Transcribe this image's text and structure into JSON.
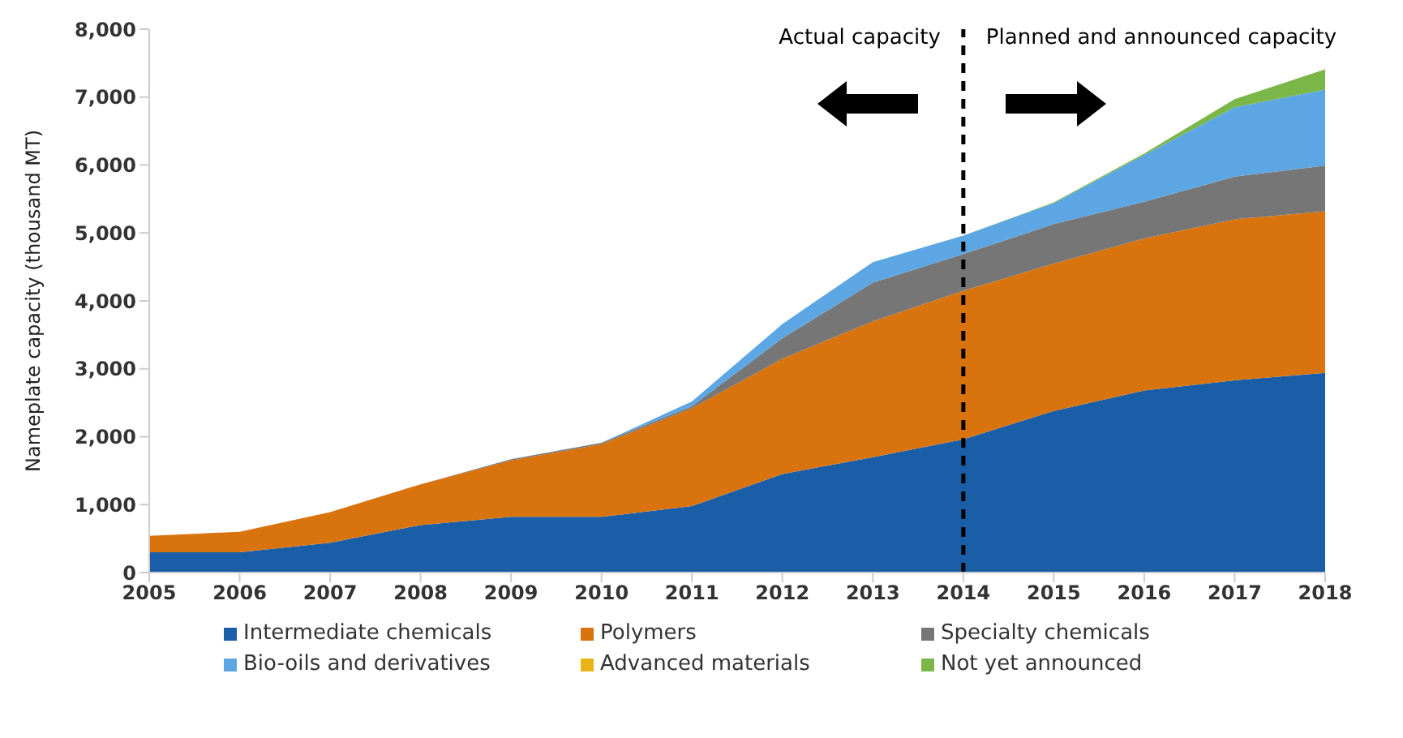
{
  "chart_data": {
    "type": "area",
    "stacked": true,
    "ylabel": "Nameplate capacity (thousand MT)",
    "categories": [
      "2005",
      "2006",
      "2007",
      "2008",
      "2009",
      "2010",
      "2011",
      "2012",
      "2013",
      "2014",
      "2015",
      "2016",
      "2017",
      "2018"
    ],
    "series": [
      {
        "name": "Intermediate chemicals",
        "color": "#1a5ea8",
        "values": [
          300,
          300,
          440,
          700,
          820,
          820,
          980,
          1450,
          1700,
          1960,
          2380,
          2680,
          2830,
          2940
        ]
      },
      {
        "name": "Polymers",
        "color": "#d9730d",
        "values": [
          240,
          300,
          450,
          600,
          830,
          1070,
          1440,
          1700,
          2000,
          2190,
          2170,
          2240,
          2370,
          2380
        ]
      },
      {
        "name": "Specialty chemicals",
        "color": "#767676",
        "values": [
          0,
          0,
          0,
          0,
          20,
          20,
          30,
          300,
          570,
          540,
          580,
          540,
          630,
          670
        ]
      },
      {
        "name": "Bio-oils and derivatives",
        "color": "#5ca6e3",
        "values": [
          0,
          0,
          0,
          0,
          0,
          0,
          70,
          210,
          300,
          270,
          310,
          690,
          1020,
          1120
        ]
      },
      {
        "name": "Advanced materials",
        "color": "#e8b418",
        "values": [
          null,
          null,
          null,
          null,
          null,
          null,
          null,
          null,
          null,
          null,
          null,
          null,
          null,
          null
        ]
      },
      {
        "name": "Not yet announced",
        "color": "#7ab648",
        "values": [
          0,
          0,
          0,
          0,
          0,
          0,
          0,
          0,
          0,
          0,
          10,
          20,
          120,
          300
        ]
      }
    ],
    "ylim": [
      0,
      8000
    ],
    "yticks": [
      0,
      {
        "value": 1000,
        "label": "1,000"
      },
      {
        "value": 2000,
        "label": "2,000"
      },
      {
        "value": 3000,
        "label": "3,000"
      },
      {
        "value": 4000,
        "label": "4,000"
      },
      {
        "value": 5000,
        "label": "5,000"
      },
      {
        "value": 6000,
        "label": "6,000"
      },
      {
        "value": 7000,
        "label": "7,000"
      },
      {
        "value": 8000,
        "label": "8,000"
      }
    ],
    "ref_lines": [
      {
        "axis": "x",
        "value": "2014",
        "color": "#000000",
        "line_style": "dashed"
      }
    ],
    "annotations": [
      "Actual capacity",
      "Planned and announced capacity"
    ],
    "legend": "bottom",
    "grid": false
  }
}
